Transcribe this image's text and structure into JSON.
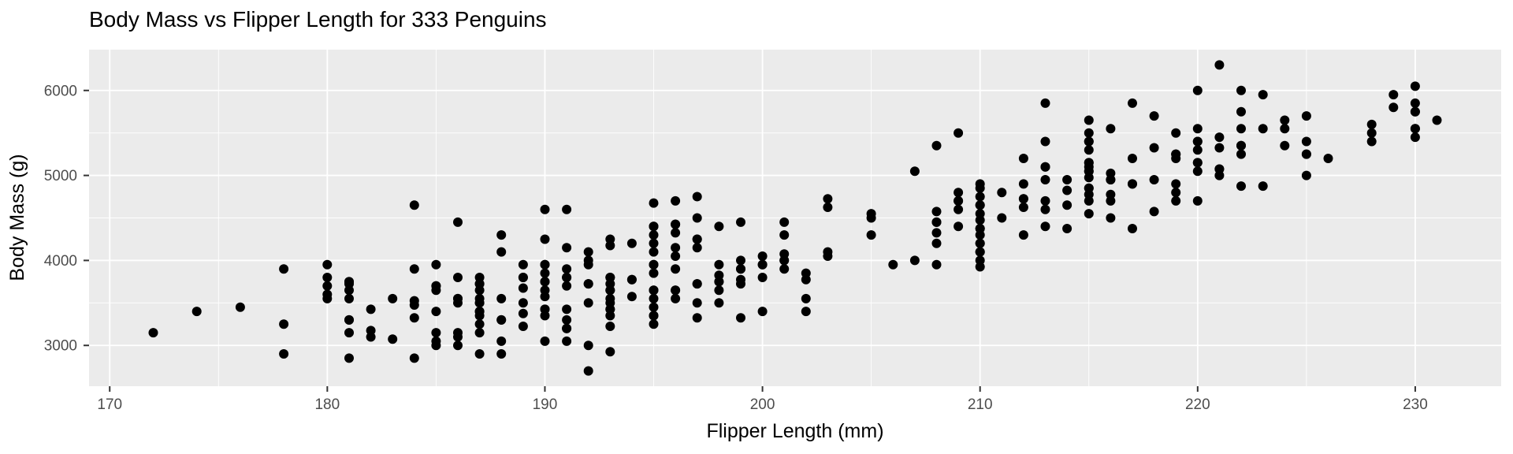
{
  "chart_data": {
    "type": "scatter",
    "title": "Body Mass vs Flipper Length for 333 Penguins",
    "xlabel": "Flipper Length (mm)",
    "ylabel": "Body Mass (g)",
    "x_ticks": [
      170,
      180,
      190,
      200,
      210,
      220,
      230
    ],
    "y_ticks": [
      3000,
      4000,
      5000,
      6000
    ],
    "x_minor_gridlines": [
      175,
      185,
      195,
      205,
      215,
      225
    ],
    "y_minor_gridlines": [
      3500,
      4500,
      5500
    ],
    "xlim": [
      169.05,
      233.95
    ],
    "ylim": [
      2520,
      6480
    ],
    "grid": "on",
    "legend_position": "none",
    "point_count": 333,
    "colors": {
      "panel_background": "#EBEBEB",
      "gridline": "#FFFFFF",
      "point": "#000000",
      "tick_mark": "#333333",
      "tick_label": "#4D4D4D",
      "text": "#000000"
    },
    "points": [
      [
        172,
        3150
      ],
      [
        174,
        3400
      ],
      [
        176,
        3450
      ],
      [
        178,
        3900
      ],
      [
        178,
        3250
      ],
      [
        178,
        2900
      ],
      [
        180,
        3950
      ],
      [
        180,
        3800
      ],
      [
        180,
        3700
      ],
      [
        180,
        3600
      ],
      [
        180,
        3550
      ],
      [
        181,
        3750
      ],
      [
        181,
        3750
      ],
      [
        181,
        3725
      ],
      [
        181,
        3650
      ],
      [
        181,
        3550
      ],
      [
        181,
        3300
      ],
      [
        181,
        3300
      ],
      [
        181,
        3150
      ],
      [
        181,
        2850
      ],
      [
        182,
        3425
      ],
      [
        182,
        3175
      ],
      [
        182,
        3100
      ],
      [
        183,
        3550
      ],
      [
        183,
        3075
      ],
      [
        184,
        4650
      ],
      [
        184,
        3900
      ],
      [
        184,
        3525
      ],
      [
        184,
        3475
      ],
      [
        184,
        3325
      ],
      [
        184,
        2850
      ],
      [
        185,
        3950
      ],
      [
        185,
        3700
      ],
      [
        185,
        3700
      ],
      [
        185,
        3650
      ],
      [
        185,
        3400
      ],
      [
        185,
        3150
      ],
      [
        185,
        3050
      ],
      [
        185,
        3000
      ],
      [
        186,
        4450
      ],
      [
        186,
        3800
      ],
      [
        186,
        3550
      ],
      [
        186,
        3550
      ],
      [
        186,
        3500
      ],
      [
        186,
        3150
      ],
      [
        186,
        3100
      ],
      [
        186,
        3000
      ],
      [
        187,
        3800
      ],
      [
        187,
        3725
      ],
      [
        187,
        3725
      ],
      [
        187,
        3650
      ],
      [
        187,
        3550
      ],
      [
        187,
        3500
      ],
      [
        187,
        3500
      ],
      [
        187,
        3400
      ],
      [
        187,
        3400
      ],
      [
        187,
        3350
      ],
      [
        187,
        3250
      ],
      [
        187,
        3150
      ],
      [
        187,
        2900
      ],
      [
        188,
        4300
      ],
      [
        188,
        4100
      ],
      [
        188,
        3550
      ],
      [
        188,
        3300
      ],
      [
        188,
        3300
      ],
      [
        188,
        3050
      ],
      [
        188,
        2900
      ],
      [
        189,
        3950
      ],
      [
        189,
        3800
      ],
      [
        189,
        3800
      ],
      [
        189,
        3675
      ],
      [
        189,
        3500
      ],
      [
        189,
        3375
      ],
      [
        189,
        3225
      ],
      [
        190,
        4600
      ],
      [
        190,
        4250
      ],
      [
        190,
        3950
      ],
      [
        190,
        3950
      ],
      [
        190,
        3850
      ],
      [
        190,
        3750
      ],
      [
        190,
        3750
      ],
      [
        190,
        3650
      ],
      [
        190,
        3575
      ],
      [
        190,
        3425
      ],
      [
        190,
        3425
      ],
      [
        190,
        3350
      ],
      [
        190,
        3050
      ],
      [
        191,
        4600
      ],
      [
        191,
        4150
      ],
      [
        191,
        3900
      ],
      [
        191,
        3800
      ],
      [
        191,
        3800
      ],
      [
        191,
        3700
      ],
      [
        191,
        3425
      ],
      [
        191,
        3300
      ],
      [
        191,
        3200
      ],
      [
        191,
        3200
      ],
      [
        191,
        3050
      ],
      [
        192,
        4100
      ],
      [
        192,
        4000
      ],
      [
        192,
        3950
      ],
      [
        192,
        3725
      ],
      [
        192,
        3725
      ],
      [
        192,
        3500
      ],
      [
        192,
        3000
      ],
      [
        192,
        2700
      ],
      [
        193,
        4250
      ],
      [
        193,
        4175
      ],
      [
        193,
        3800
      ],
      [
        193,
        3800
      ],
      [
        193,
        3725
      ],
      [
        193,
        3650
      ],
      [
        193,
        3650
      ],
      [
        193,
        3550
      ],
      [
        193,
        3500
      ],
      [
        193,
        3425
      ],
      [
        193,
        3425
      ],
      [
        193,
        3350
      ],
      [
        193,
        3225
      ],
      [
        193,
        2925
      ],
      [
        194,
        4200
      ],
      [
        194,
        3775
      ],
      [
        194,
        3775
      ],
      [
        194,
        3575
      ],
      [
        195,
        4675
      ],
      [
        195,
        4400
      ],
      [
        195,
        4400
      ],
      [
        195,
        4300
      ],
      [
        195,
        4200
      ],
      [
        195,
        4100
      ],
      [
        195,
        3950
      ],
      [
        195,
        3950
      ],
      [
        195,
        3850
      ],
      [
        195,
        3650
      ],
      [
        195,
        3650
      ],
      [
        195,
        3550
      ],
      [
        195,
        3450
      ],
      [
        195,
        3350
      ],
      [
        195,
        3350
      ],
      [
        195,
        3250
      ],
      [
        196,
        4700
      ],
      [
        196,
        4425
      ],
      [
        196,
        4425
      ],
      [
        196,
        4325
      ],
      [
        196,
        4150
      ],
      [
        196,
        4050
      ],
      [
        196,
        3900
      ],
      [
        196,
        3650
      ],
      [
        196,
        3650
      ],
      [
        196,
        3550
      ],
      [
        197,
        4750
      ],
      [
        197,
        4500
      ],
      [
        197,
        4250
      ],
      [
        197,
        4250
      ],
      [
        197,
        4150
      ],
      [
        197,
        3725
      ],
      [
        197,
        3725
      ],
      [
        197,
        3500
      ],
      [
        197,
        3325
      ],
      [
        198,
        4400
      ],
      [
        198,
        3950
      ],
      [
        198,
        3825
      ],
      [
        198,
        3750
      ],
      [
        198,
        3750
      ],
      [
        198,
        3650
      ],
      [
        198,
        3500
      ],
      [
        199,
        4450
      ],
      [
        199,
        4000
      ],
      [
        199,
        3900
      ],
      [
        199,
        3900
      ],
      [
        199,
        3775
      ],
      [
        199,
        3725
      ],
      [
        199,
        3325
      ],
      [
        200,
        4050
      ],
      [
        200,
        3950
      ],
      [
        200,
        3950
      ],
      [
        200,
        3800
      ],
      [
        200,
        3400
      ],
      [
        201,
        4450
      ],
      [
        201,
        4300
      ],
      [
        201,
        4075
      ],
      [
        201,
        4000
      ],
      [
        201,
        4000
      ],
      [
        201,
        3900
      ],
      [
        202,
        3850
      ],
      [
        202,
        3775
      ],
      [
        202,
        3550
      ],
      [
        202,
        3400
      ],
      [
        203,
        4725
      ],
      [
        203,
        4625
      ],
      [
        203,
        4100
      ],
      [
        203,
        4050
      ],
      [
        205,
        4550
      ],
      [
        205,
        4500
      ],
      [
        205,
        4300
      ],
      [
        206,
        3950
      ],
      [
        207,
        5050
      ],
      [
        207,
        4000
      ],
      [
        208,
        5350
      ],
      [
        208,
        4575
      ],
      [
        208,
        4450
      ],
      [
        208,
        4450
      ],
      [
        208,
        4325
      ],
      [
        208,
        4200
      ],
      [
        208,
        3950
      ],
      [
        209,
        5500
      ],
      [
        209,
        4800
      ],
      [
        209,
        4700
      ],
      [
        209,
        4700
      ],
      [
        209,
        4600
      ],
      [
        209,
        4400
      ],
      [
        210,
        4900
      ],
      [
        210,
        4850
      ],
      [
        210,
        4750
      ],
      [
        210,
        4650
      ],
      [
        210,
        4650
      ],
      [
        210,
        4550
      ],
      [
        210,
        4475
      ],
      [
        210,
        4375
      ],
      [
        210,
        4375
      ],
      [
        210,
        4300
      ],
      [
        210,
        4200
      ],
      [
        210,
        4200
      ],
      [
        210,
        4100
      ],
      [
        210,
        4100
      ],
      [
        210,
        4000
      ],
      [
        210,
        3925
      ],
      [
        211,
        4800
      ],
      [
        211,
        4500
      ],
      [
        212,
        5200
      ],
      [
        212,
        4900
      ],
      [
        212,
        4725
      ],
      [
        212,
        4725
      ],
      [
        212,
        4625
      ],
      [
        212,
        4300
      ],
      [
        213,
        5850
      ],
      [
        213,
        5400
      ],
      [
        213,
        5100
      ],
      [
        213,
        5100
      ],
      [
        213,
        4950
      ],
      [
        213,
        4700
      ],
      [
        213,
        4600
      ],
      [
        213,
        4400
      ],
      [
        214,
        4950
      ],
      [
        214,
        4825
      ],
      [
        214,
        4650
      ],
      [
        214,
        4375
      ],
      [
        215,
        5650
      ],
      [
        215,
        5500
      ],
      [
        215,
        5400
      ],
      [
        215,
        5400
      ],
      [
        215,
        5300
      ],
      [
        215,
        5150
      ],
      [
        215,
        5150
      ],
      [
        215,
        5100
      ],
      [
        215,
        5050
      ],
      [
        215,
        5050
      ],
      [
        215,
        4975
      ],
      [
        215,
        4850
      ],
      [
        215,
        4850
      ],
      [
        215,
        4775
      ],
      [
        215,
        4700
      ],
      [
        215,
        4550
      ],
      [
        216,
        5550
      ],
      [
        216,
        5025
      ],
      [
        216,
        4950
      ],
      [
        216,
        4950
      ],
      [
        216,
        4775
      ],
      [
        216,
        4700
      ],
      [
        216,
        4500
      ],
      [
        217,
        5850
      ],
      [
        217,
        5200
      ],
      [
        217,
        4900
      ],
      [
        217,
        4900
      ],
      [
        217,
        4375
      ],
      [
        218,
        5700
      ],
      [
        218,
        5325
      ],
      [
        218,
        4950
      ],
      [
        218,
        4575
      ],
      [
        219,
        5500
      ],
      [
        219,
        5250
      ],
      [
        219,
        5250
      ],
      [
        219,
        5200
      ],
      [
        219,
        4900
      ],
      [
        219,
        4800
      ],
      [
        219,
        4700
      ],
      [
        220,
        6000
      ],
      [
        220,
        5550
      ],
      [
        220,
        5400
      ],
      [
        220,
        5400
      ],
      [
        220,
        5300
      ],
      [
        220,
        5150
      ],
      [
        220,
        5150
      ],
      [
        220,
        5050
      ],
      [
        220,
        4700
      ],
      [
        221,
        6300
      ],
      [
        221,
        5450
      ],
      [
        221,
        5325
      ],
      [
        221,
        5075
      ],
      [
        221,
        5075
      ],
      [
        221,
        5000
      ],
      [
        222,
        6000
      ],
      [
        222,
        5750
      ],
      [
        222,
        5550
      ],
      [
        222,
        5350
      ],
      [
        222,
        5350
      ],
      [
        222,
        5250
      ],
      [
        222,
        4875
      ],
      [
        223,
        5950
      ],
      [
        223,
        5550
      ],
      [
        223,
        4875
      ],
      [
        224,
        5650
      ],
      [
        224,
        5550
      ],
      [
        224,
        5350
      ],
      [
        225,
        5700
      ],
      [
        225,
        5400
      ],
      [
        225,
        5250
      ],
      [
        225,
        5250
      ],
      [
        225,
        5000
      ],
      [
        226,
        5200
      ],
      [
        228,
        5600
      ],
      [
        228,
        5500
      ],
      [
        228,
        5400
      ],
      [
        229,
        5950
      ],
      [
        229,
        5800
      ],
      [
        230,
        6050
      ],
      [
        230,
        5850
      ],
      [
        230,
        5750
      ],
      [
        230,
        5750
      ],
      [
        230,
        5550
      ],
      [
        230,
        5550
      ],
      [
        230,
        5450
      ],
      [
        231,
        5650
      ]
    ]
  }
}
